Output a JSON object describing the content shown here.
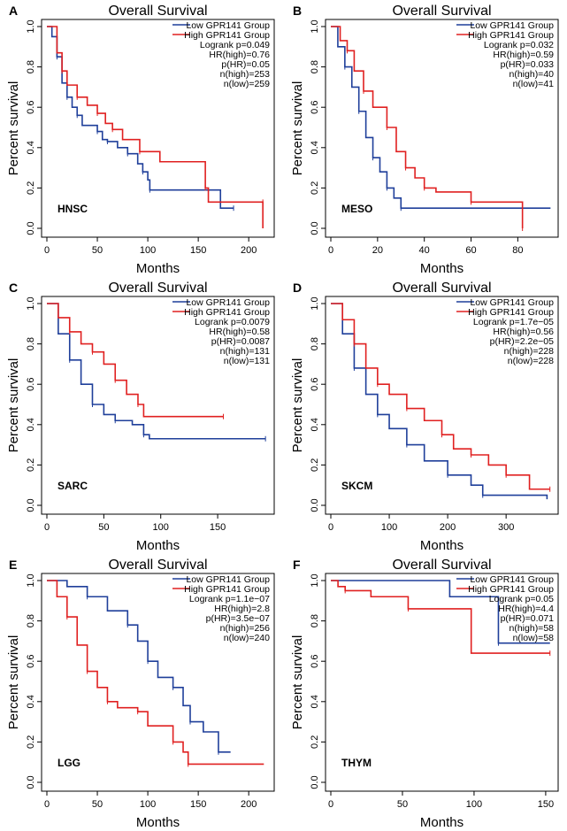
{
  "chart_data": [
    {
      "panel": "A",
      "type": "line",
      "title": "Overall Survival",
      "xlabel": "Months",
      "ylabel": "Percent survival",
      "cancer": "HNSC",
      "xlim": [
        0,
        220
      ],
      "ylim": [
        0,
        1
      ],
      "xticks": [
        0,
        50,
        100,
        150,
        200
      ],
      "yticks": [
        "0.0",
        "0.2",
        "0.4",
        "0.6",
        "0.8",
        "1.0"
      ],
      "legend": [
        "Low GPR141 Group",
        "High GPR141 Group"
      ],
      "stats": [
        "Logrank p=0.049",
        "HR(high)=0.76",
        "p(HR)=0.05",
        "n(high)=253",
        "n(low)=259"
      ],
      "series": [
        {
          "name": "Low GPR141 Group",
          "color": "#1f3f9a",
          "points": [
            [
              0,
              1
            ],
            [
              5,
              0.95
            ],
            [
              10,
              0.85
            ],
            [
              15,
              0.72
            ],
            [
              20,
              0.65
            ],
            [
              25,
              0.6
            ],
            [
              30,
              0.56
            ],
            [
              35,
              0.51
            ],
            [
              50,
              0.48
            ],
            [
              55,
              0.44
            ],
            [
              60,
              0.43
            ],
            [
              70,
              0.4
            ],
            [
              80,
              0.37
            ],
            [
              90,
              0.32
            ],
            [
              95,
              0.28
            ],
            [
              100,
              0.24
            ],
            [
              102,
              0.19
            ],
            [
              172,
              0.1
            ],
            [
              185,
              0.1
            ]
          ]
        },
        {
          "name": "High GPR141 Group",
          "color": "#e02020",
          "points": [
            [
              0,
              1
            ],
            [
              10,
              0.87
            ],
            [
              15,
              0.78
            ],
            [
              20,
              0.71
            ],
            [
              30,
              0.65
            ],
            [
              40,
              0.61
            ],
            [
              50,
              0.57
            ],
            [
              58,
              0.52
            ],
            [
              65,
              0.49
            ],
            [
              75,
              0.44
            ],
            [
              92,
              0.38
            ],
            [
              112,
              0.33
            ],
            [
              157,
              0.2
            ],
            [
              160,
              0.13
            ],
            [
              214,
              0.13
            ],
            [
              214,
              0
            ]
          ]
        }
      ]
    },
    {
      "panel": "B",
      "type": "line",
      "title": "Overall Survival",
      "xlabel": "Months",
      "ylabel": "Percent survival",
      "cancer": "MESO",
      "xlim": [
        0,
        95
      ],
      "ylim": [
        0,
        1
      ],
      "xticks": [
        0,
        20,
        40,
        60,
        80
      ],
      "yticks": [
        "0.0",
        "0.2",
        "0.4",
        "0.6",
        "0.8",
        "1.0"
      ],
      "legend": [
        "Low GPR141 Group",
        "High GPR141 Group"
      ],
      "stats": [
        "Logrank p=0.032",
        "HR(high)=0.59",
        "p(HR)=0.033",
        "n(high)=40",
        "n(low)=41"
      ],
      "series": [
        {
          "name": "Low GPR141 Group",
          "color": "#1f3f9a",
          "points": [
            [
              0,
              1
            ],
            [
              3,
              0.9
            ],
            [
              6,
              0.8
            ],
            [
              9,
              0.7
            ],
            [
              12,
              0.58
            ],
            [
              15,
              0.45
            ],
            [
              18,
              0.35
            ],
            [
              21,
              0.28
            ],
            [
              24,
              0.2
            ],
            [
              27,
              0.15
            ],
            [
              30,
              0.1
            ],
            [
              94,
              0.1
            ]
          ]
        },
        {
          "name": "High GPR141 Group",
          "color": "#e02020",
          "points": [
            [
              0,
              1
            ],
            [
              4,
              0.93
            ],
            [
              7,
              0.88
            ],
            [
              10,
              0.78
            ],
            [
              14,
              0.68
            ],
            [
              18,
              0.6
            ],
            [
              24,
              0.5
            ],
            [
              28,
              0.38
            ],
            [
              32,
              0.3
            ],
            [
              36,
              0.25
            ],
            [
              40,
              0.2
            ],
            [
              45,
              0.18
            ],
            [
              60,
              0.13
            ],
            [
              82,
              0.13
            ],
            [
              82,
              0
            ]
          ]
        }
      ]
    },
    {
      "panel": "C",
      "type": "line",
      "title": "Overall Survival",
      "xlabel": "Months",
      "ylabel": "Percent survival",
      "cancer": "SARC",
      "xlim": [
        0,
        195
      ],
      "ylim": [
        0,
        1
      ],
      "xticks": [
        0,
        50,
        100,
        150
      ],
      "yticks": [
        "0.0",
        "0.2",
        "0.4",
        "0.6",
        "0.8",
        "1.0"
      ],
      "legend": [
        "Low GPR141 Group",
        "High GPR141 Group"
      ],
      "stats": [
        "Logrank p=0.0079",
        "HR(high)=0.58",
        "p(HR)=0.0087",
        "n(high)=131",
        "n(low)=131"
      ],
      "series": [
        {
          "name": "Low GPR141 Group",
          "color": "#1f3f9a",
          "points": [
            [
              0,
              1
            ],
            [
              10,
              0.85
            ],
            [
              20,
              0.72
            ],
            [
              30,
              0.6
            ],
            [
              40,
              0.5
            ],
            [
              50,
              0.45
            ],
            [
              60,
              0.42
            ],
            [
              75,
              0.4
            ],
            [
              85,
              0.35
            ],
            [
              90,
              0.33
            ],
            [
              192,
              0.33
            ]
          ]
        },
        {
          "name": "High GPR141 Group",
          "color": "#e02020",
          "points": [
            [
              0,
              1
            ],
            [
              10,
              0.93
            ],
            [
              20,
              0.86
            ],
            [
              30,
              0.8
            ],
            [
              40,
              0.76
            ],
            [
              50,
              0.7
            ],
            [
              60,
              0.62
            ],
            [
              70,
              0.55
            ],
            [
              80,
              0.5
            ],
            [
              85,
              0.44
            ],
            [
              155,
              0.44
            ]
          ]
        }
      ]
    },
    {
      "panel": "D",
      "type": "line",
      "title": "Overall Survival",
      "xlabel": "Months",
      "ylabel": "Percent survival",
      "cancer": "SKCM",
      "xlim": [
        0,
        380
      ],
      "ylim": [
        0,
        1
      ],
      "xticks": [
        0,
        100,
        200,
        300
      ],
      "yticks": [
        "0.0",
        "0.2",
        "0.4",
        "0.6",
        "0.8",
        "1.0"
      ],
      "legend": [
        "Low GPR141 Group",
        "High GPR141 Group"
      ],
      "stats": [
        "Logrank p=1.7e−05",
        "HR(high)=0.56",
        "p(HR)=2.2e−05",
        "n(high)=228",
        "n(low)=228"
      ],
      "series": [
        {
          "name": "Low GPR141 Group",
          "color": "#1f3f9a",
          "points": [
            [
              0,
              1
            ],
            [
              20,
              0.85
            ],
            [
              40,
              0.68
            ],
            [
              60,
              0.55
            ],
            [
              80,
              0.45
            ],
            [
              100,
              0.38
            ],
            [
              130,
              0.3
            ],
            [
              160,
              0.22
            ],
            [
              200,
              0.15
            ],
            [
              240,
              0.1
            ],
            [
              260,
              0.05
            ],
            [
              370,
              0.03
            ]
          ]
        },
        {
          "name": "High GPR141 Group",
          "color": "#e02020",
          "points": [
            [
              0,
              1
            ],
            [
              20,
              0.92
            ],
            [
              40,
              0.8
            ],
            [
              60,
              0.68
            ],
            [
              80,
              0.6
            ],
            [
              100,
              0.55
            ],
            [
              130,
              0.48
            ],
            [
              160,
              0.42
            ],
            [
              190,
              0.35
            ],
            [
              210,
              0.28
            ],
            [
              240,
              0.25
            ],
            [
              270,
              0.2
            ],
            [
              300,
              0.15
            ],
            [
              340,
              0.08
            ],
            [
              375,
              0.08
            ]
          ]
        }
      ]
    },
    {
      "panel": "E",
      "type": "line",
      "title": "Overall Survival",
      "xlabel": "Months",
      "ylabel": "Percent survival",
      "cancer": "LGG",
      "xlim": [
        0,
        220
      ],
      "ylim": [
        0,
        1
      ],
      "xticks": [
        0,
        50,
        100,
        150,
        200
      ],
      "yticks": [
        "0.0",
        "0.2",
        "0.4",
        "0.6",
        "0.8",
        "1.0"
      ],
      "legend": [
        "Low GPR141 Group",
        "High GPR141 Group"
      ],
      "stats": [
        "Logrank p=1.1e−07",
        "HR(high)=2.8",
        "p(HR)=3.5e−07",
        "n(high)=256",
        "n(low)=240"
      ],
      "series": [
        {
          "name": "Low GPR141 Group",
          "color": "#1f3f9a",
          "points": [
            [
              0,
              1
            ],
            [
              20,
              0.97
            ],
            [
              40,
              0.92
            ],
            [
              60,
              0.85
            ],
            [
              80,
              0.78
            ],
            [
              90,
              0.7
            ],
            [
              100,
              0.6
            ],
            [
              110,
              0.52
            ],
            [
              125,
              0.47
            ],
            [
              135,
              0.38
            ],
            [
              142,
              0.3
            ],
            [
              155,
              0.25
            ],
            [
              170,
              0.15
            ],
            [
              182,
              0.15
            ]
          ]
        },
        {
          "name": "High GPR141 Group",
          "color": "#e02020",
          "points": [
            [
              0,
              1
            ],
            [
              10,
              0.92
            ],
            [
              20,
              0.82
            ],
            [
              30,
              0.68
            ],
            [
              40,
              0.55
            ],
            [
              50,
              0.47
            ],
            [
              60,
              0.4
            ],
            [
              70,
              0.37
            ],
            [
              90,
              0.35
            ],
            [
              100,
              0.28
            ],
            [
              125,
              0.2
            ],
            [
              135,
              0.15
            ],
            [
              140,
              0.09
            ],
            [
              215,
              0.09
            ]
          ]
        }
      ]
    },
    {
      "panel": "F",
      "type": "line",
      "title": "Overall Survival",
      "xlabel": "Months",
      "ylabel": "Percent survival",
      "cancer": "THYM",
      "xlim": [
        0,
        155
      ],
      "ylim": [
        0,
        1
      ],
      "xticks": [
        0,
        50,
        100,
        150
      ],
      "yticks": [
        "0.0",
        "0.2",
        "0.4",
        "0.6",
        "0.8",
        "1.0"
      ],
      "legend": [
        "Low GPR141 Group",
        "High GPR141 Group"
      ],
      "stats": [
        "Logrank p=0.05",
        "HR(high)=4.4",
        "p(HR)=0.071",
        "n(high)=58",
        "n(low)=58"
      ],
      "series": [
        {
          "name": "Low GPR141 Group",
          "color": "#1f3f9a",
          "points": [
            [
              0,
              1
            ],
            [
              83,
              0.92
            ],
            [
              117,
              0.69
            ],
            [
              153,
              0.69
            ]
          ]
        },
        {
          "name": "High GPR141 Group",
          "color": "#e02020",
          "points": [
            [
              0,
              1
            ],
            [
              5,
              0.97
            ],
            [
              10,
              0.95
            ],
            [
              28,
              0.92
            ],
            [
              54,
              0.86
            ],
            [
              98,
              0.64
            ],
            [
              153,
              0.64
            ]
          ]
        }
      ]
    }
  ]
}
